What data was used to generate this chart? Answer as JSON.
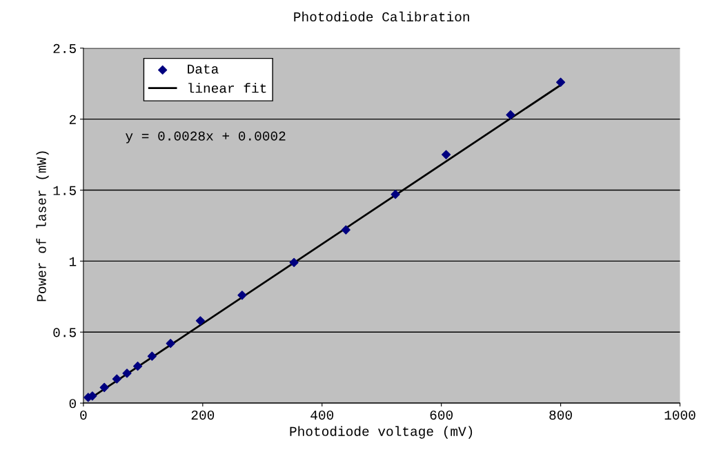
{
  "chart_data": {
    "type": "scatter",
    "title": "Photodiode Calibration",
    "xlabel": "Photodiode voltage (mV)",
    "ylabel": "Power of laser (mW)",
    "xlim": [
      0,
      1000
    ],
    "xticks": [
      0,
      200,
      400,
      600,
      800,
      1000
    ],
    "ylim": [
      0,
      2.5
    ],
    "yticks": [
      0,
      0.5,
      1,
      1.5,
      2,
      2.5
    ],
    "grid": "y",
    "legend": "top left",
    "annotations": [
      "y = 0.0028x + 0.0002"
    ],
    "series": [
      {
        "name": "Data",
        "color": "#000080",
        "marker": "diamond",
        "x": [
          8,
          15,
          35,
          56,
          73,
          91,
          115,
          146,
          196,
          266,
          353,
          440,
          523,
          608,
          716,
          800
        ],
        "values": [
          0.04,
          0.05,
          0.11,
          0.17,
          0.21,
          0.26,
          0.33,
          0.42,
          0.58,
          0.76,
          0.99,
          1.22,
          1.47,
          1.75,
          2.03,
          2.26
        ]
      },
      {
        "name": "linear fit",
        "type": "line",
        "color": "#000000",
        "marker": "none",
        "line_style": "solid",
        "x": [
          8,
          800
        ],
        "values": [
          0.023,
          2.24
        ]
      }
    ]
  }
}
